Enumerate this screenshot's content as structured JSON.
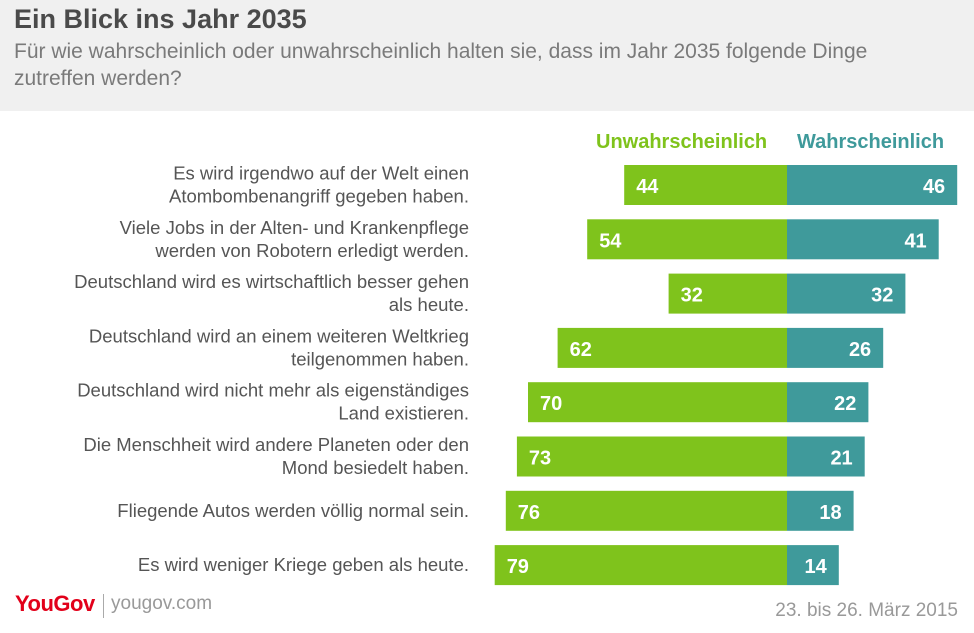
{
  "header": {
    "title": "Ein Blick ins Jahr 2035",
    "subtitle": "Für wie wahrscheinlich oder unwahrscheinlich halten sie, dass im Jahr 2035 folgende Dinge zutreffen werden?"
  },
  "colors": {
    "unwahrscheinlich": "#7fc31c",
    "wahrscheinlich": "#3f9a9b"
  },
  "chart_data": {
    "type": "bar",
    "orientation": "horizontal-diverging",
    "categories": [
      [
        "Es wird irgendwo auf der Welt einen",
        "Atombombenangriff gegeben haben."
      ],
      [
        "Viele Jobs in der Alten- und Krankenpflege",
        "werden von Robotern erledigt werden."
      ],
      [
        "Deutschland wird es wirtschaftlich besser gehen",
        "als heute."
      ],
      [
        "Deutschland wird an einem weiteren Weltkrieg",
        "teilgenommen haben."
      ],
      [
        "Deutschland wird nicht mehr als eigenständiges",
        "Land existieren."
      ],
      [
        "Die Menschheit wird andere Planeten oder den",
        "Mond besiedelt haben."
      ],
      [
        "Fliegende Autos werden völlig normal sein."
      ],
      [
        "Es wird weniger Kriege geben als heute."
      ]
    ],
    "series": [
      {
        "name": "Unwahrscheinlich",
        "values": [
          44,
          54,
          32,
          62,
          70,
          73,
          76,
          79
        ]
      },
      {
        "name": "Wahrscheinlich",
        "values": [
          46,
          41,
          32,
          26,
          22,
          21,
          18,
          14
        ]
      }
    ],
    "legend": "top"
  },
  "footer": {
    "logo": "YouGov",
    "site": "yougov.com",
    "date": "23. bis 26. März 2015"
  }
}
